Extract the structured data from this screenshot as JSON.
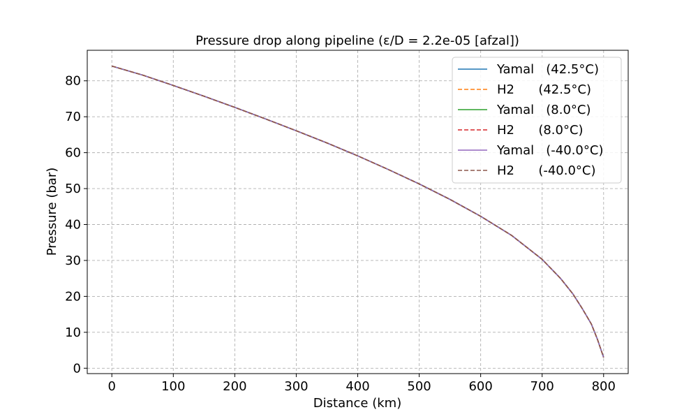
{
  "chart_data": {
    "type": "line",
    "title": "Pressure drop along pipeline (ε/D = 2.2e-05 [afzal])",
    "xlabel": "Distance (km)",
    "ylabel": "Pressure (bar)",
    "xlim": [
      -40,
      840
    ],
    "ylim": [
      -1.5,
      88.5
    ],
    "xticks": [
      0,
      100,
      200,
      300,
      400,
      500,
      600,
      700,
      800
    ],
    "yticks": [
      0,
      10,
      20,
      30,
      40,
      50,
      60,
      70,
      80
    ],
    "grid": true,
    "legend_position": "top-right",
    "x": [
      0,
      50,
      100,
      150,
      200,
      250,
      300,
      350,
      400,
      450,
      500,
      550,
      600,
      650,
      700,
      730,
      750,
      765,
      780,
      790,
      800
    ],
    "series": [
      {
        "name": "Yamal   (42.5°C)",
        "color": "#1f77b4",
        "dash": "solid",
        "values": [
          84.1,
          81.6,
          78.7,
          75.7,
          72.6,
          69.4,
          66.1,
          62.7,
          59.1,
          55.3,
          51.3,
          47.0,
          42.3,
          37.0,
          30.3,
          25.0,
          20.7,
          16.7,
          12.3,
          8.0,
          3.0
        ]
      },
      {
        "name": "H2      (42.5°C)",
        "color": "#ff7f0e",
        "dash": "dashed",
        "values": [
          84.1,
          81.6,
          78.7,
          75.7,
          72.6,
          69.4,
          66.1,
          62.7,
          59.1,
          55.3,
          51.3,
          47.0,
          42.3,
          37.0,
          30.3,
          25.0,
          20.7,
          16.7,
          12.3,
          8.0,
          3.0
        ]
      },
      {
        "name": "Yamal   (8.0°C)",
        "color": "#2ca02c",
        "dash": "solid",
        "values": [
          84.1,
          81.6,
          78.7,
          75.7,
          72.6,
          69.4,
          66.1,
          62.7,
          59.1,
          55.3,
          51.3,
          47.0,
          42.3,
          37.0,
          30.3,
          25.0,
          20.7,
          16.7,
          12.3,
          8.0,
          3.0
        ]
      },
      {
        "name": "H2      (8.0°C)",
        "color": "#d62728",
        "dash": "dashed",
        "values": [
          84.1,
          81.6,
          78.7,
          75.7,
          72.6,
          69.4,
          66.1,
          62.7,
          59.1,
          55.3,
          51.3,
          47.0,
          42.3,
          37.0,
          30.3,
          25.0,
          20.7,
          16.7,
          12.3,
          8.0,
          3.0
        ]
      },
      {
        "name": "Yamal   (-40.0°C)",
        "color": "#9467bd",
        "dash": "solid",
        "values": [
          84.1,
          81.6,
          78.7,
          75.7,
          72.6,
          69.4,
          66.1,
          62.7,
          59.1,
          55.3,
          51.3,
          47.0,
          42.3,
          37.0,
          30.3,
          25.0,
          20.7,
          16.7,
          12.3,
          8.0,
          3.0
        ]
      },
      {
        "name": "H2      (-40.0°C)",
        "color": "#8c564b",
        "dash": "dashed",
        "values": [
          84.1,
          81.6,
          78.7,
          75.7,
          72.6,
          69.4,
          66.1,
          62.7,
          59.1,
          55.3,
          51.3,
          47.0,
          42.3,
          37.0,
          30.3,
          25.0,
          20.7,
          16.7,
          12.3,
          8.0,
          3.0
        ]
      }
    ]
  }
}
